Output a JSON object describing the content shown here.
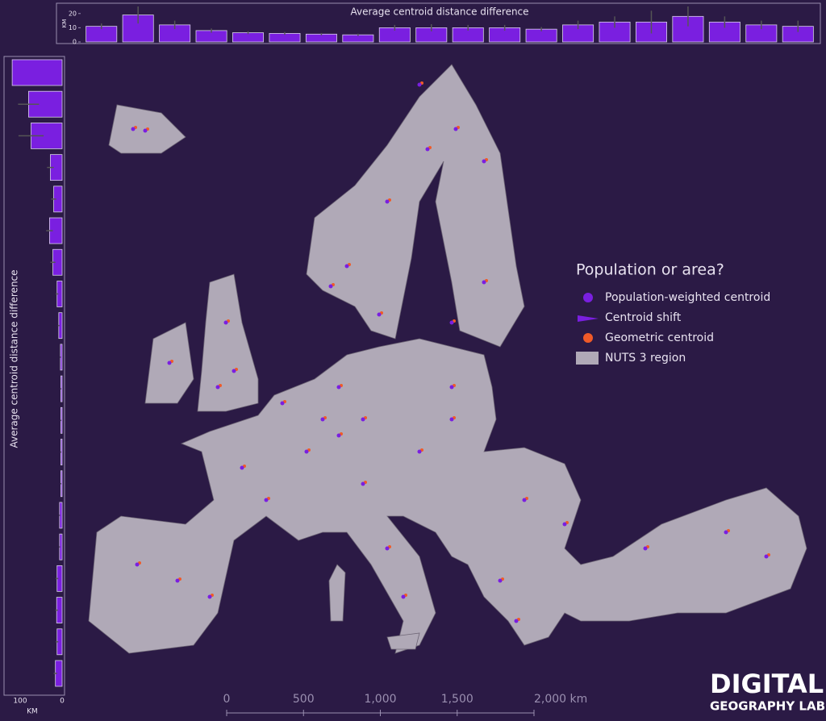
{
  "map": {
    "legend": {
      "title": "Population or area?",
      "items": [
        "Population-weighted centroid",
        "Centroid shift",
        "Geometric centroid",
        "NUTS 3 region"
      ]
    },
    "scale": {
      "ticks": [
        0,
        500,
        {
          "value": 1000,
          "label": "1,000"
        },
        {
          "value": 1500,
          "label": "1,500"
        },
        {
          "value": 2000,
          "label": "2,000 km"
        }
      ],
      "lim": [
        0,
        2000
      ]
    },
    "logo": [
      "DIGITAL",
      "GEOGRAPHY LAB"
    ]
  },
  "chart_data": [
    {
      "type": "bar",
      "title": "Average centroid distance difference",
      "y_label": "KM",
      "color": "#7a1fe0",
      "values": [
        11,
        19,
        12,
        8,
        6.5,
        6,
        5.5,
        5,
        10,
        10,
        10,
        10,
        9,
        12,
        14,
        14,
        18,
        14,
        12,
        11
      ],
      "errors": [
        2,
        6,
        3,
        1.5,
        1,
        1,
        0.8,
        0.8,
        2,
        2.5,
        2,
        2,
        1.5,
        3,
        4,
        8,
        7,
        4,
        3,
        4
      ],
      "ylim": [
        0,
        25
      ],
      "yticks": [
        0,
        10,
        20
      ]
    },
    {
      "type": "hbar",
      "title": "Average centroid distance difference",
      "x_label": "KM",
      "color": "#7a1fe0",
      "x_reversed": true,
      "values": [
        119,
        80,
        74,
        28,
        20,
        30,
        22,
        12,
        8,
        4,
        3,
        3,
        3,
        3,
        6,
        6,
        12,
        13,
        12,
        16
      ],
      "errors": [
        0,
        25,
        30,
        8,
        6,
        8,
        6,
        3,
        2,
        1,
        1,
        1,
        1,
        1,
        1,
        1,
        3,
        3,
        3,
        4
      ],
      "xlim": [
        0,
        120
      ],
      "xticks": [
        0,
        100
      ]
    }
  ]
}
